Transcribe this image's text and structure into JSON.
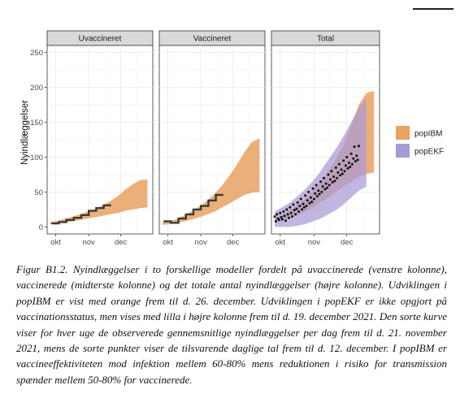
{
  "figure": {
    "ylabel": "Nyindlæggelser",
    "facets": [
      "Uvaccineret",
      "Vaccineret",
      "Total"
    ],
    "yticks": [
      0,
      50,
      100,
      150,
      200,
      250
    ],
    "xticks": [
      "okt",
      "nov",
      "dec"
    ],
    "legend": [
      {
        "label": "popIBM",
        "color": "#E8A261"
      },
      {
        "label": "popEKF",
        "color": "#A79AD6"
      }
    ]
  },
  "caption": "Figur B1.2. Nyindlæggelser i to forskellige modeller fordelt på uvaccinerede (venstre kolonne), vaccinerede (midterste kolonne) og det totale antal nyindlæggelser (højre kolonne). Udviklingen i popIBM er vist med orange frem til d. 26. december. Udviklingen i popEKF er ikke opgjort på vaccinationsstatus, men vises med lilla i højre kolonne frem til d. 19. december 2021. Den sorte kurve viser for hver uge de observerede gennemsnitlige nyindlæggelser per dag frem til d. 21. november 2021, mens de sorte punkter viser de tilsvarende daglige tal frem til d. 12. december. I popIBM er vaccineeffektiviteten mod infektion mellem 60-80% mens reduktionen i risiko for transmission spænder mellem 50-80% for vaccinerede.",
  "chart_data": {
    "type": "area",
    "facets": [
      "Uvaccineret",
      "Vaccineret",
      "Total"
    ],
    "ylabel": "Nyindlæggelser",
    "xlabel": "",
    "ylim": [
      -10,
      260
    ],
    "y_ticks": [
      0,
      50,
      100,
      150,
      200,
      250
    ],
    "x_ticks": [
      {
        "date": "2021-10-01",
        "label": "okt"
      },
      {
        "date": "2021-11-01",
        "label": "nov"
      },
      {
        "date": "2021-12-01",
        "label": "dec"
      }
    ],
    "xlim": [
      "2021-09-23",
      "2021-12-31"
    ],
    "series": [
      {
        "name": "popIBM",
        "facet": "Uvaccineret",
        "color": "#E8A261",
        "x": [
          "2021-09-26",
          "2021-10-03",
          "2021-10-10",
          "2021-10-17",
          "2021-10-24",
          "2021-10-31",
          "2021-11-07",
          "2021-11-14",
          "2021-11-21",
          "2021-11-28",
          "2021-12-05",
          "2021-12-12",
          "2021-12-19",
          "2021-12-26"
        ],
        "lower": [
          4,
          5,
          7,
          8,
          10,
          12,
          14,
          16,
          18,
          20,
          23,
          25,
          27,
          28
        ],
        "upper": [
          7,
          9,
          12,
          15,
          18,
          22,
          26,
          31,
          37,
          44,
          53,
          61,
          67,
          68
        ]
      },
      {
        "name": "popIBM",
        "facet": "Vaccineret",
        "color": "#E8A261",
        "x": [
          "2021-09-26",
          "2021-10-03",
          "2021-10-10",
          "2021-10-17",
          "2021-10-24",
          "2021-10-31",
          "2021-11-07",
          "2021-11-14",
          "2021-11-21",
          "2021-11-28",
          "2021-12-05",
          "2021-12-12",
          "2021-12-19",
          "2021-12-26"
        ],
        "lower": [
          3,
          4,
          6,
          8,
          11,
          14,
          18,
          22,
          28,
          34,
          40,
          46,
          49,
          50
        ],
        "upper": [
          6,
          8,
          12,
          17,
          23,
          30,
          38,
          48,
          60,
          74,
          90,
          108,
          122,
          127
        ]
      },
      {
        "name": "popIBM",
        "facet": "Total",
        "color": "#E8A261",
        "x": [
          "2021-09-26",
          "2021-10-03",
          "2021-10-10",
          "2021-10-17",
          "2021-10-24",
          "2021-10-31",
          "2021-11-07",
          "2021-11-14",
          "2021-11-21",
          "2021-11-28",
          "2021-12-05",
          "2021-12-12",
          "2021-12-19",
          "2021-12-26"
        ],
        "lower": [
          7,
          9,
          13,
          17,
          22,
          28,
          35,
          42,
          50,
          58,
          65,
          72,
          76,
          78
        ],
        "upper": [
          12,
          17,
          24,
          32,
          41,
          52,
          65,
          80,
          98,
          118,
          145,
          175,
          192,
          195
        ]
      },
      {
        "name": "popEKF",
        "facet": "Total",
        "color": "#A79AD6",
        "x": [
          "2021-09-26",
          "2021-10-03",
          "2021-10-10",
          "2021-10-17",
          "2021-10-24",
          "2021-10-31",
          "2021-11-07",
          "2021-11-14",
          "2021-11-21",
          "2021-11-28",
          "2021-12-05",
          "2021-12-12",
          "2021-12-19"
        ],
        "lower": [
          0,
          0,
          0,
          2,
          4,
          8,
          12,
          18,
          24,
          32,
          42,
          52,
          58
        ],
        "upper": [
          22,
          28,
          35,
          44,
          54,
          66,
          80,
          96,
          112,
          130,
          150,
          170,
          185
        ]
      }
    ],
    "observed_weekly": [
      {
        "facet": "Uvaccineret",
        "x": [
          "2021-09-27",
          "2021-10-04",
          "2021-10-11",
          "2021-10-18",
          "2021-10-25",
          "2021-11-01",
          "2021-11-08",
          "2021-11-15"
        ],
        "y": [
          5,
          7,
          10,
          13,
          17,
          23,
          27,
          31
        ]
      },
      {
        "facet": "Vaccineret",
        "x": [
          "2021-09-27",
          "2021-10-04",
          "2021-10-11",
          "2021-10-18",
          "2021-10-25",
          "2021-11-01",
          "2021-11-08",
          "2021-11-15"
        ],
        "y": [
          8,
          6,
          12,
          18,
          25,
          30,
          38,
          46
        ]
      }
    ],
    "observed_daily": {
      "facet": "Total",
      "x": [
        "2021-09-26",
        "2021-09-27",
        "2021-09-28",
        "2021-09-29",
        "2021-09-30",
        "2021-10-01",
        "2021-10-02",
        "2021-10-03",
        "2021-10-04",
        "2021-10-05",
        "2021-10-06",
        "2021-10-07",
        "2021-10-08",
        "2021-10-09",
        "2021-10-10",
        "2021-10-11",
        "2021-10-12",
        "2021-10-13",
        "2021-10-14",
        "2021-10-15",
        "2021-10-16",
        "2021-10-17",
        "2021-10-18",
        "2021-10-19",
        "2021-10-20",
        "2021-10-21",
        "2021-10-22",
        "2021-10-23",
        "2021-10-24",
        "2021-10-25",
        "2021-10-26",
        "2021-10-27",
        "2021-10-28",
        "2021-10-29",
        "2021-10-30",
        "2021-10-31",
        "2021-11-01",
        "2021-11-02",
        "2021-11-03",
        "2021-11-04",
        "2021-11-05",
        "2021-11-06",
        "2021-11-07",
        "2021-11-08",
        "2021-11-09",
        "2021-11-10",
        "2021-11-11",
        "2021-11-12",
        "2021-11-13",
        "2021-11-14",
        "2021-11-15",
        "2021-11-16",
        "2021-11-17",
        "2021-11-18",
        "2021-11-19",
        "2021-11-20",
        "2021-11-21",
        "2021-11-22",
        "2021-11-23",
        "2021-11-24",
        "2021-11-25",
        "2021-11-26",
        "2021-11-27",
        "2021-11-28",
        "2021-11-29",
        "2021-11-30",
        "2021-12-01",
        "2021-12-02",
        "2021-12-03",
        "2021-12-04",
        "2021-12-05",
        "2021-12-06",
        "2021-12-07",
        "2021-12-08",
        "2021-12-09",
        "2021-12-10",
        "2021-12-11",
        "2021-12-12"
      ],
      "y": [
        15,
        8,
        18,
        12,
        10,
        20,
        14,
        11,
        22,
        16,
        9,
        25,
        18,
        13,
        28,
        20,
        15,
        32,
        24,
        18,
        26,
        35,
        22,
        30,
        40,
        25,
        33,
        28,
        45,
        30,
        38,
        50,
        34,
        42,
        36,
        55,
        40,
        48,
        60,
        44,
        52,
        47,
        65,
        50,
        58,
        70,
        54,
        62,
        56,
        75,
        60,
        68,
        80,
        64,
        72,
        66,
        85,
        70,
        78,
        90,
        74,
        82,
        76,
        95,
        80,
        88,
        100,
        84,
        92,
        86,
        105,
        90,
        98,
        115,
        94,
        102,
        96,
        116
      ]
    }
  }
}
